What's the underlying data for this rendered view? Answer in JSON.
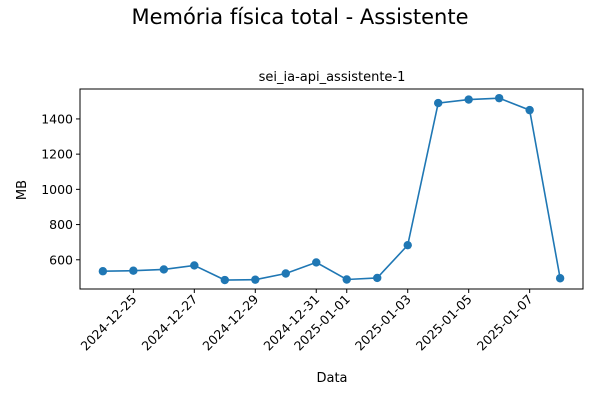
{
  "chart_data": {
    "type": "line",
    "suptitle": "Memória física total - Assistente",
    "title": "sei_ia-api_assistente-1",
    "xlabel": "Data",
    "ylabel": "MB",
    "x": [
      "2024-12-24",
      "2024-12-25",
      "2024-12-26",
      "2024-12-27",
      "2024-12-28",
      "2024-12-29",
      "2024-12-30",
      "2024-12-31",
      "2025-01-01",
      "2025-01-02",
      "2025-01-03",
      "2025-01-04",
      "2025-01-05",
      "2025-01-06",
      "2025-01-07",
      "2025-01-08"
    ],
    "series": [
      {
        "values": [
          535,
          538,
          545,
          568,
          485,
          487,
          522,
          585,
          488,
          497,
          683,
          1490,
          1510,
          1518,
          1450,
          495
        ]
      }
    ],
    "xticks": [
      "2024-12-25",
      "2024-12-27",
      "2024-12-29",
      "2024-12-31",
      "2025-01-01",
      "2025-01-03",
      "2025-01-05",
      "2025-01-07"
    ],
    "yticks": [
      600,
      800,
      1000,
      1200,
      1400
    ],
    "xlim": [
      "2023-12-23T06:00",
      "2025-01-08T18:00"
    ],
    "ylim": [
      434,
      1570
    ],
    "grid": false,
    "color": "#1f77b4"
  }
}
